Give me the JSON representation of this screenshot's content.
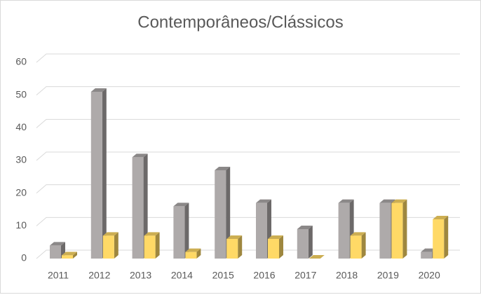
{
  "chart_data": {
    "type": "bar3d",
    "title": "Contemporâneos/Clássicos",
    "categories": [
      "2011",
      "2012",
      "2013",
      "2014",
      "2015",
      "2016",
      "2017",
      "2018",
      "2019",
      "2020"
    ],
    "series": [
      {
        "color": "#aeaaaa",
        "values": [
          4,
          51,
          31,
          16,
          27,
          17,
          9,
          17,
          17,
          2
        ]
      },
      {
        "color": "#ffd966",
        "values": [
          1,
          7,
          7,
          2,
          6,
          6,
          0,
          7,
          17,
          12
        ]
      }
    ],
    "ylim": [
      0,
      60
    ],
    "yticks": [
      0,
      10,
      20,
      30,
      40,
      50,
      60
    ],
    "grid": true
  }
}
